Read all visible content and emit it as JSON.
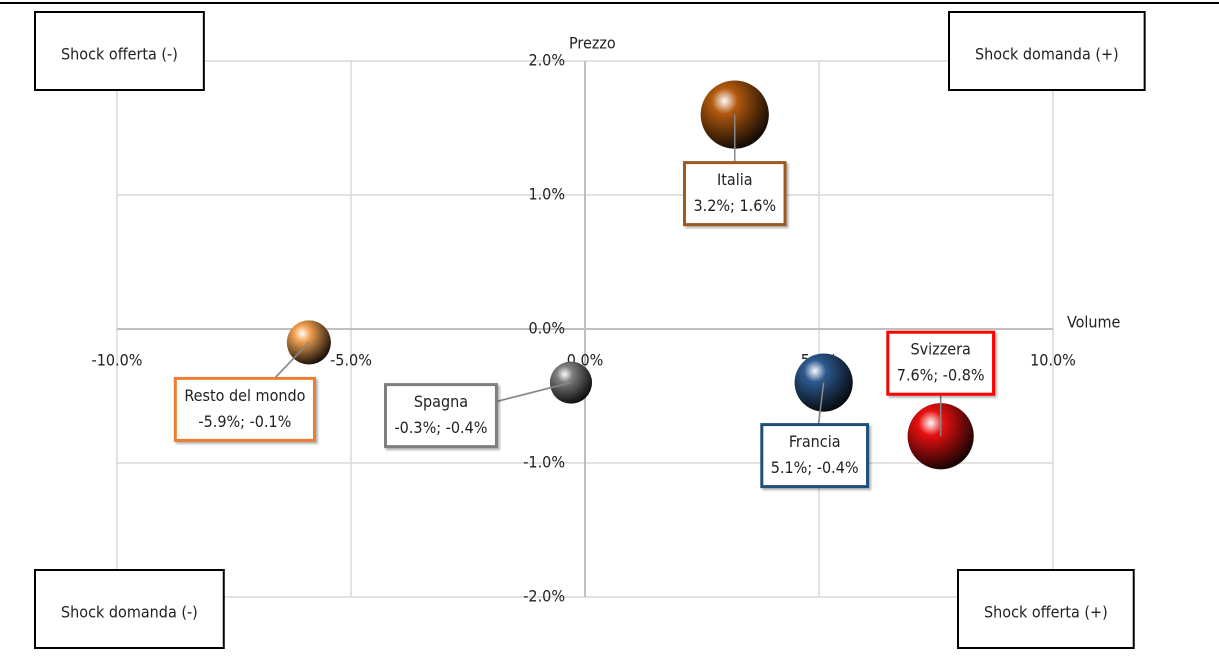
{
  "chart_data": {
    "type": "bubble",
    "x_label": "Volume",
    "y_label": "Prezzo",
    "xlim": [
      -10,
      10
    ],
    "ylim": [
      -2,
      2
    ],
    "xticks": [
      {
        "value": -10,
        "label": "-10.0%"
      },
      {
        "value": -5,
        "label": "-5.0%"
      },
      {
        "value": 0,
        "label": "0.0%"
      },
      {
        "value": 5,
        "label": "5.0%"
      },
      {
        "value": 10,
        "label": "10.0%"
      }
    ],
    "yticks": [
      {
        "value": -2,
        "label": "-2.0%"
      },
      {
        "value": -1,
        "label": "-1.0%"
      },
      {
        "value": 0,
        "label": "0.0%"
      },
      {
        "value": 1,
        "label": "1.0%"
      },
      {
        "value": 2,
        "label": "2.0%"
      }
    ],
    "grid": true,
    "series": [
      {
        "name": "Italia",
        "color": "#b35a0f",
        "border": "#9c5a1e",
        "x": [
          3.2
        ],
        "values": [
          1.6
        ],
        "sizes": [
          34
        ],
        "value_labels": [
          "3.2%; 1.6%"
        ]
      },
      {
        "name": "Resto del mondo",
        "color": "#f0a050",
        "border": "#ed7d31",
        "x": [
          -5.9
        ],
        "values": [
          -0.1
        ],
        "sizes": [
          22
        ],
        "value_labels": [
          "-5.9%; -0.1%"
        ]
      },
      {
        "name": "Spagna",
        "color": "#808080",
        "border": "#7f7f7f",
        "x": [
          -0.3
        ],
        "values": [
          -0.4
        ],
        "sizes": [
          21
        ],
        "value_labels": [
          "-0.3%; -0.4%"
        ]
      },
      {
        "name": "Francia",
        "color": "#2e5a8f",
        "border": "#1f4e79",
        "x": [
          5.1
        ],
        "values": [
          -0.4
        ],
        "sizes": [
          29
        ],
        "value_labels": [
          "5.1%; -0.4%"
        ]
      },
      {
        "name": "Svizzera",
        "color": "#e81010",
        "border": "#ff0000",
        "x": [
          7.6
        ],
        "values": [
          -0.8
        ],
        "sizes": [
          33
        ],
        "value_labels": [
          "7.6%; -0.8%"
        ]
      }
    ],
    "annotations": [
      {
        "text": "Shock offerta (-)",
        "corner": "top-left"
      },
      {
        "text": "Shock domanda (+)",
        "corner": "top-right"
      },
      {
        "text": "Shock domanda (-)",
        "corner": "bottom-left"
      },
      {
        "text": "Shock offerta (+)",
        "corner": "bottom-right"
      }
    ]
  }
}
